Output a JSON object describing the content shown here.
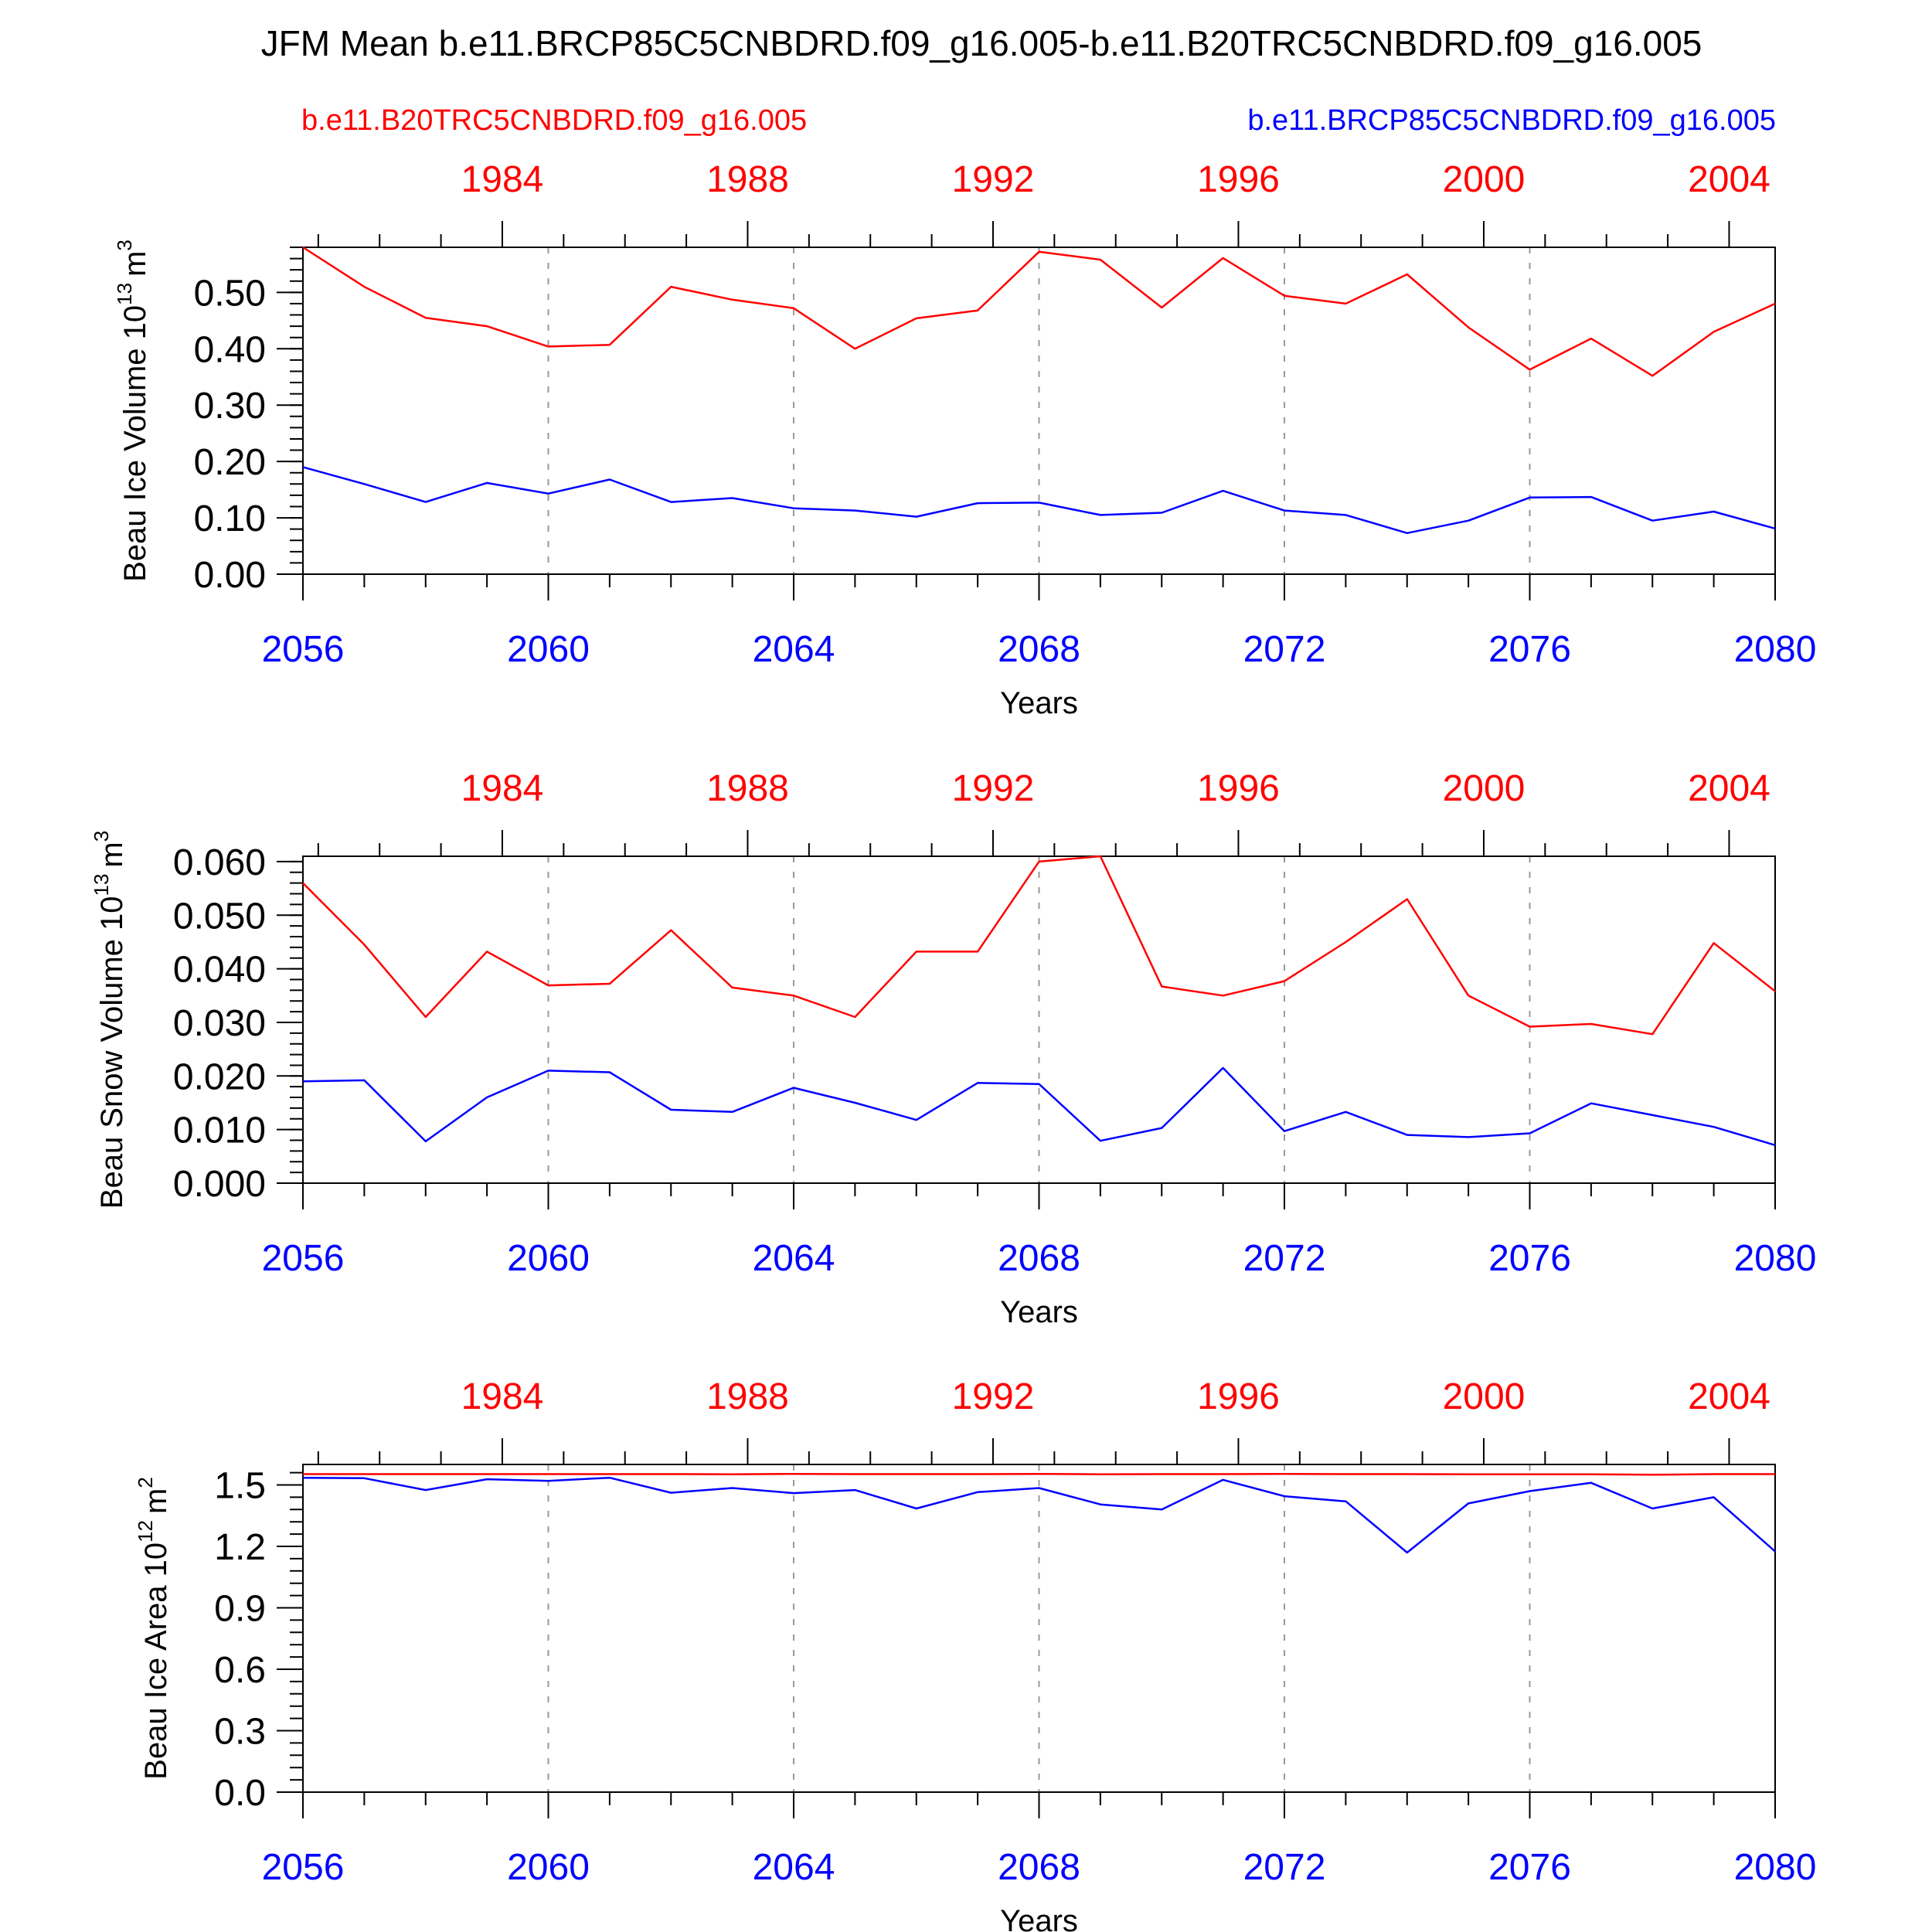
{
  "title": "JFM Mean b.e11.BRCP85C5CNBDRD.f09_g16.005-b.e11.B20TRC5CNBDRD.f09_g16.005",
  "legend": {
    "red_label": "b.e11.B20TRC5CNBDRD.f09_g16.005",
    "blue_label": "b.e11.BRCP85C5CNBDRD.f09_g16.005",
    "red_color": "#ff0000",
    "blue_color": "#0000ff"
  },
  "chart_data": [
    {
      "type": "line",
      "xlabel": "Years",
      "ylabel_base": "Beau Ice Volume 10",
      "ylabel_exp": "13",
      "ylabel_unit": "m",
      "ylabel_unit_exp": "3",
      "x": [
        2056,
        2057,
        2058,
        2059,
        2060,
        2061,
        2062,
        2063,
        2064,
        2065,
        2066,
        2067,
        2068,
        2069,
        2070,
        2071,
        2072,
        2073,
        2074,
        2075,
        2076,
        2077,
        2078,
        2079,
        2080
      ],
      "xlim": [
        2056,
        2080
      ],
      "ylim": [
        0.0,
        0.58
      ],
      "x_ticks": [
        2056,
        2060,
        2064,
        2068,
        2072,
        2076,
        2080
      ],
      "x_tick_labels": [
        "2056",
        "2060",
        "2064",
        "2068",
        "2072",
        "2076",
        "2080"
      ],
      "top_ticks": [
        1984,
        1988,
        1992,
        1996,
        2000,
        2004
      ],
      "top_tick_labels": [
        "1984",
        "1988",
        "1992",
        "1996",
        "2000",
        "2004"
      ],
      "y_ticks": [
        0.0,
        0.1,
        0.2,
        0.3,
        0.4,
        0.5
      ],
      "y_tick_labels": [
        "0.00",
        "0.10",
        "0.20",
        "0.30",
        "0.40",
        "0.50"
      ],
      "y_minor_step": 0.02,
      "series": [
        {
          "color": "#ff0000",
          "values": [
            0.58,
            0.51,
            0.455,
            0.44,
            0.404,
            0.407,
            0.51,
            0.487,
            0.472,
            0.4,
            0.454,
            0.468,
            0.572,
            0.558,
            0.473,
            0.561,
            0.494,
            0.48,
            0.532,
            0.438,
            0.363,
            0.418,
            0.352,
            0.43,
            0.48
          ]
        },
        {
          "color": "#0000ff",
          "values": [
            0.19,
            0.16,
            0.128,
            0.162,
            0.143,
            0.168,
            0.128,
            0.135,
            0.117,
            0.113,
            0.102,
            0.126,
            0.127,
            0.105,
            0.109,
            0.148,
            0.113,
            0.105,
            0.073,
            0.095,
            0.136,
            0.137,
            0.095,
            0.111,
            0.081
          ]
        }
      ]
    },
    {
      "type": "line",
      "xlabel": "Years",
      "ylabel_base": "Beau Snow Volume 10",
      "ylabel_exp": "13",
      "ylabel_unit": "m",
      "ylabel_unit_exp": "3",
      "x": [
        2056,
        2057,
        2058,
        2059,
        2060,
        2061,
        2062,
        2063,
        2064,
        2065,
        2066,
        2067,
        2068,
        2069,
        2070,
        2071,
        2072,
        2073,
        2074,
        2075,
        2076,
        2077,
        2078,
        2079,
        2080
      ],
      "xlim": [
        2056,
        2080
      ],
      "ylim": [
        0.0,
        0.061
      ],
      "x_ticks": [
        2056,
        2060,
        2064,
        2068,
        2072,
        2076,
        2080
      ],
      "x_tick_labels": [
        "2056",
        "2060",
        "2064",
        "2068",
        "2072",
        "2076",
        "2080"
      ],
      "top_ticks": [
        1984,
        1988,
        1992,
        1996,
        2000,
        2004
      ],
      "top_tick_labels": [
        "1984",
        "1988",
        "1992",
        "1996",
        "2000",
        "2004"
      ],
      "y_ticks": [
        0.0,
        0.01,
        0.02,
        0.03,
        0.04,
        0.05,
        0.06
      ],
      "y_tick_labels": [
        "0.000",
        "0.010",
        "0.020",
        "0.030",
        "0.040",
        "0.050",
        "0.060"
      ],
      "y_minor_step": 0.002,
      "series": [
        {
          "color": "#ff0000",
          "values": [
            0.056,
            0.0445,
            0.031,
            0.0432,
            0.0369,
            0.0372,
            0.0472,
            0.0365,
            0.035,
            0.031,
            0.0432,
            0.0432,
            0.06,
            0.061,
            0.0367,
            0.035,
            0.0377,
            0.045,
            0.053,
            0.035,
            0.0292,
            0.0297,
            0.0278,
            0.0448,
            0.0358
          ]
        },
        {
          "color": "#0000ff",
          "values": [
            0.019,
            0.0192,
            0.0078,
            0.016,
            0.021,
            0.0207,
            0.0137,
            0.0133,
            0.0178,
            0.015,
            0.0118,
            0.0187,
            0.0185,
            0.0079,
            0.0103,
            0.0215,
            0.0097,
            0.0133,
            0.009,
            0.0086,
            0.0093,
            0.0149,
            0.0127,
            0.0105,
            0.0071
          ]
        }
      ]
    },
    {
      "type": "line",
      "xlabel": "Years",
      "ylabel_base": "Beau Ice Area 10",
      "ylabel_exp": "12",
      "ylabel_unit": "m",
      "ylabel_unit_exp": "2",
      "x": [
        2056,
        2057,
        2058,
        2059,
        2060,
        2061,
        2062,
        2063,
        2064,
        2065,
        2066,
        2067,
        2068,
        2069,
        2070,
        2071,
        2072,
        2073,
        2074,
        2075,
        2076,
        2077,
        2078,
        2079,
        2080
      ],
      "xlim": [
        2056,
        2080
      ],
      "ylim": [
        0.0,
        1.6
      ],
      "x_ticks": [
        2056,
        2060,
        2064,
        2068,
        2072,
        2076,
        2080
      ],
      "x_tick_labels": [
        "2056",
        "2060",
        "2064",
        "2068",
        "2072",
        "2076",
        "2080"
      ],
      "top_ticks": [
        1984,
        1988,
        1992,
        1996,
        2000,
        2004
      ],
      "top_tick_labels": [
        "1984",
        "1988",
        "1992",
        "1996",
        "2000",
        "2004"
      ],
      "y_ticks": [
        0.0,
        0.3,
        0.6,
        0.9,
        1.2,
        1.5
      ],
      "y_tick_labels": [
        "0.0",
        "0.3",
        "0.6",
        "0.9",
        "1.2",
        "1.5"
      ],
      "y_minor_step": 0.06,
      "series": [
        {
          "color": "#ff0000",
          "values": [
            1.553,
            1.553,
            1.553,
            1.553,
            1.553,
            1.553,
            1.553,
            1.552,
            1.554,
            1.553,
            1.553,
            1.553,
            1.554,
            1.552,
            1.553,
            1.553,
            1.554,
            1.553,
            1.553,
            1.552,
            1.552,
            1.552,
            1.55,
            1.553,
            1.553
          ]
        },
        {
          "color": "#0000ff",
          "values": [
            1.535,
            1.533,
            1.475,
            1.528,
            1.52,
            1.535,
            1.462,
            1.485,
            1.46,
            1.475,
            1.385,
            1.465,
            1.485,
            1.405,
            1.38,
            1.525,
            1.445,
            1.42,
            1.17,
            1.41,
            1.47,
            1.51,
            1.385,
            1.44,
            1.175
          ]
        }
      ]
    }
  ]
}
